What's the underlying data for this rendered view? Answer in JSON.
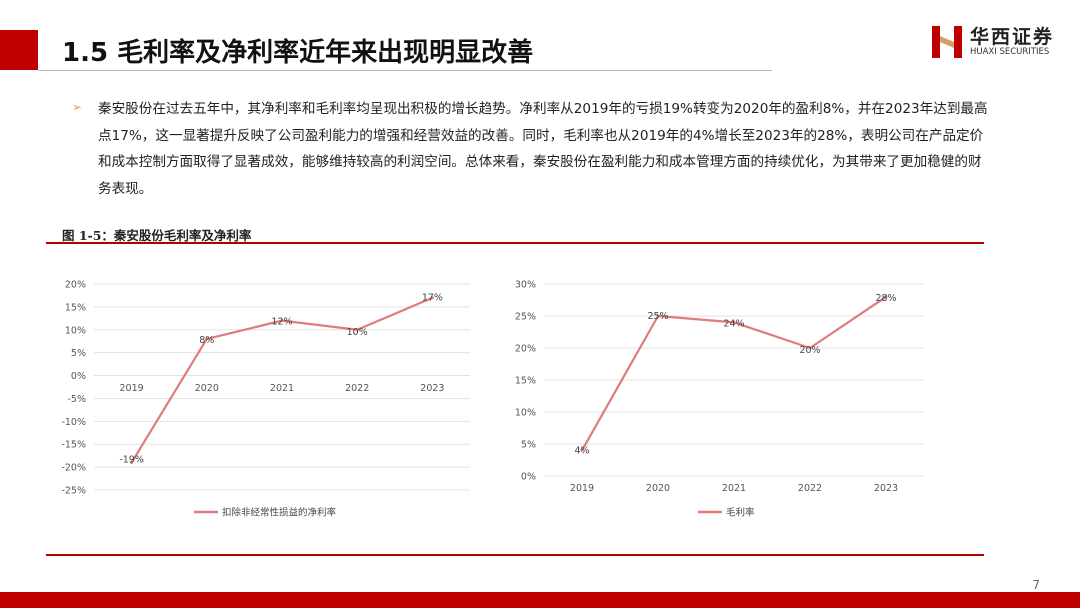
{
  "header": {
    "title": "1.5 毛利率及净利率近年来出现明显改善",
    "logo_cn": "华西证券",
    "logo_en": "HUAXI SECURITIES"
  },
  "body": {
    "bullet_icon": "arrow-bullet-icon",
    "paragraph": "秦安股份在过去五年中，其净利率和毛利率均呈现出积极的增长趋势。净利率从2019年的亏损19%转变为2020年的盈利8%，并在2023年达到最高点17%，这一显著提升反映了公司盈利能力的增强和经营效益的改善。同时，毛利率也从2019年的4%增长至2023年的28%，表明公司在产品定价和成本控制方面取得了显著成效，能够维持较高的利润空间。总体来看，秦安股份在盈利能力和成本管理方面的持续优化，为其带来了更加稳健的财务表现。"
  },
  "figure_title": "图 1-5：秦安股份毛利率及净利率",
  "page_number": "7",
  "colors": {
    "accent": "#c00000",
    "line_net": "#e07b7b",
    "line_gross": "#e07b7b"
  },
  "chart_data": [
    {
      "type": "line",
      "categories": [
        "2019",
        "2020",
        "2021",
        "2022",
        "2023"
      ],
      "series": [
        {
          "name": "扣除非经常性损益的净利率",
          "values": [
            -19,
            8,
            12,
            10,
            17
          ]
        }
      ],
      "data_labels": [
        "-19%",
        "8%",
        "12%",
        "10%",
        "17%"
      ],
      "ylim": [
        -25,
        20
      ],
      "yticks": [
        20,
        15,
        10,
        5,
        0,
        -5,
        -10,
        -15,
        -20,
        -25
      ],
      "ytick_labels": [
        "20%",
        "15%",
        "10%",
        "5%",
        "0%",
        "-5%",
        "-10%",
        "-15%",
        "-20%",
        "-25%"
      ],
      "grid": true,
      "legend": "bottom"
    },
    {
      "type": "line",
      "categories": [
        "2019",
        "2020",
        "2021",
        "2022",
        "2023"
      ],
      "series": [
        {
          "name": "毛利率",
          "values": [
            4,
            25,
            24,
            20,
            28
          ]
        }
      ],
      "data_labels": [
        "4%",
        "25%",
        "24%",
        "20%",
        "28%"
      ],
      "ylim": [
        0,
        30
      ],
      "yticks": [
        30,
        25,
        20,
        15,
        10,
        5,
        0
      ],
      "ytick_labels": [
        "30%",
        "25%",
        "20%",
        "15%",
        "10%",
        "5%",
        "0%"
      ],
      "grid": true,
      "legend": "bottom"
    }
  ]
}
